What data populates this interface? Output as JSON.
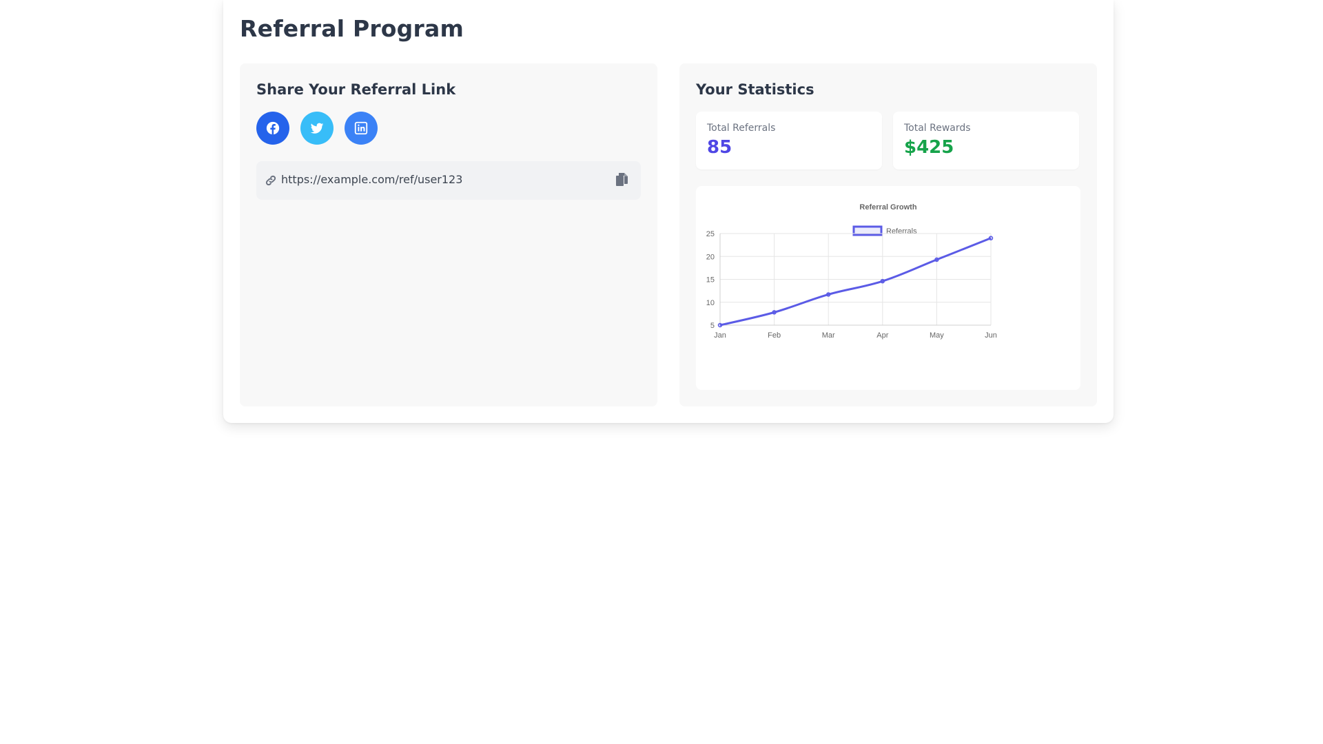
{
  "page": {
    "title": "Referral Program"
  },
  "share": {
    "title": "Share Your Referral Link",
    "buttons": [
      {
        "icon": "facebook-icon",
        "color": "#2563eb"
      },
      {
        "icon": "twitter-icon",
        "color": "#38bdf8"
      },
      {
        "icon": "linkedin-icon",
        "color": "#3b82f6"
      }
    ],
    "link_url": "https://example.com/ref/user123"
  },
  "stats": {
    "title": "Your Statistics",
    "total_referrals_label": "Total Referrals",
    "total_referrals_value": "85",
    "total_rewards_label": "Total Rewards",
    "total_rewards_value": "$425",
    "referrals_color": "#4f46e5",
    "rewards_color": "#16a34a"
  },
  "chart_data": {
    "type": "line",
    "title": "Referral Growth",
    "categories": [
      "Jan",
      "Feb",
      "Mar",
      "Apr",
      "May",
      "Jun"
    ],
    "series": [
      {
        "name": "Referrals",
        "values": [
          5,
          7.8,
          11.7,
          14.6,
          19.3,
          24
        ],
        "color": "#5b5be6"
      }
    ],
    "ylim": [
      5,
      25
    ],
    "yticks": [
      5,
      10,
      15,
      20,
      25
    ],
    "grid": true,
    "legend": "top"
  }
}
